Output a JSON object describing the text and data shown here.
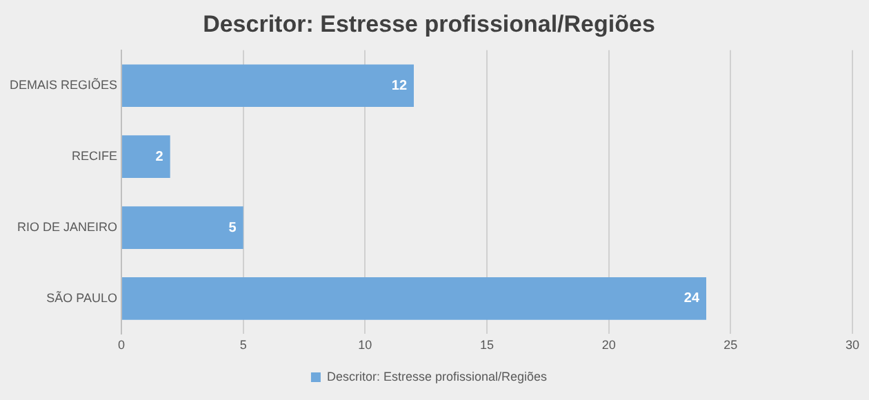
{
  "chart_data": {
    "type": "bar",
    "title": "Descritor: Estresse profissional/Regiões",
    "orientation": "horizontal",
    "categories": [
      "DEMAIS REGIÕES",
      "RECIFE",
      "RIO DE JANEIRO",
      "SÃO PAULO"
    ],
    "series": [
      {
        "name": "Descritor: Estresse profissional/Regiões",
        "color": "#6fa8dc",
        "values": [
          12,
          2,
          5,
          24
        ]
      }
    ],
    "xlim": [
      0,
      30
    ],
    "xticks": [
      0,
      5,
      10,
      15,
      20,
      25,
      30
    ],
    "grid": "x",
    "legend": "bottom",
    "data_labels": true
  }
}
